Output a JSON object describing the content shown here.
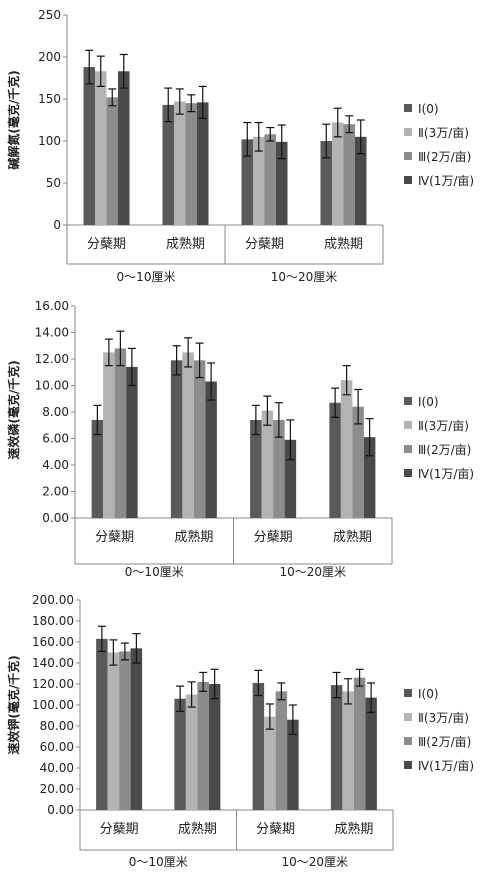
{
  "legend": [
    "Ⅰ(0)",
    "Ⅱ(3万/亩)",
    "Ⅲ(2万/亩)",
    "Ⅳ(1万/亩)"
  ],
  "colors": [
    "#5a5a5a",
    "#b3b3b3",
    "#8c8c8c",
    "#4a4a4a"
  ],
  "chart_data": [
    {
      "type": "bar",
      "ylabel": "碱解氮(毫克/千克)",
      "ylim": [
        0,
        250
      ],
      "yticks": [
        "0",
        "50",
        "100",
        "150",
        "200",
        "250"
      ],
      "ytick_values": [
        0,
        50,
        100,
        150,
        200,
        250
      ],
      "categories": [
        "分蘖期",
        "成熟期",
        "分蘖期",
        "成熟期"
      ],
      "groups": [
        "0～10厘米",
        "10～20厘米"
      ],
      "series": [
        {
          "name": "Ⅰ(0)",
          "values": [
            188,
            143,
            102,
            100
          ],
          "errors": [
            20,
            20,
            20,
            20
          ]
        },
        {
          "name": "Ⅱ(3万/亩)",
          "values": [
            183,
            147,
            105,
            122
          ],
          "errors": [
            18,
            15,
            17,
            17
          ]
        },
        {
          "name": "Ⅲ(2万/亩)",
          "values": [
            152,
            145,
            108,
            120
          ],
          "errors": [
            10,
            10,
            8,
            10
          ]
        },
        {
          "name": "Ⅳ(1万/亩)",
          "values": [
            183,
            146,
            99,
            105
          ],
          "errors": [
            20,
            19,
            20,
            20
          ]
        }
      ]
    },
    {
      "type": "bar",
      "ylabel": "速效磷(毫克/千克)",
      "ylim": [
        0,
        16
      ],
      "yticks": [
        "0.00",
        "2.00",
        "4.00",
        "6.00",
        "8.00",
        "10.00",
        "12.00",
        "14.00",
        "16.00"
      ],
      "ytick_values": [
        0,
        2,
        4,
        6,
        8,
        10,
        12,
        14,
        16
      ],
      "categories": [
        "分蘖期",
        "成熟期",
        "分蘖期",
        "成熟期"
      ],
      "groups": [
        "0～10厘米",
        "10～20厘米"
      ],
      "series": [
        {
          "name": "Ⅰ(0)",
          "values": [
            7.4,
            11.9,
            7.4,
            8.7
          ],
          "errors": [
            1.1,
            1.1,
            1.1,
            1.1
          ]
        },
        {
          "name": "Ⅱ(3万/亩)",
          "values": [
            12.5,
            12.5,
            8.1,
            10.4
          ],
          "errors": [
            1.0,
            1.1,
            1.1,
            1.1
          ]
        },
        {
          "name": "Ⅲ(2万/亩)",
          "values": [
            12.8,
            11.9,
            7.4,
            8.4
          ],
          "errors": [
            1.3,
            1.3,
            1.3,
            1.3
          ]
        },
        {
          "name": "Ⅳ(1万/亩)",
          "values": [
            11.4,
            10.3,
            5.9,
            6.1
          ],
          "errors": [
            1.4,
            1.4,
            1.5,
            1.4
          ]
        }
      ]
    },
    {
      "type": "bar",
      "ylabel": "速效钾(毫克/千克)",
      "ylim": [
        0,
        200
      ],
      "yticks": [
        "0.00",
        "20.00",
        "40.00",
        "60.00",
        "80.00",
        "100.00",
        "120.00",
        "140.00",
        "160.00",
        "180.00",
        "200.00"
      ],
      "ytick_values": [
        0,
        20,
        40,
        60,
        80,
        100,
        120,
        140,
        160,
        180,
        200
      ],
      "categories": [
        "分蘖期",
        "成熟期",
        "分蘖期",
        "成熟期"
      ],
      "groups": [
        "0～10厘米",
        "10～20厘米"
      ],
      "series": [
        {
          "name": "Ⅰ(0)",
          "values": [
            163,
            106,
            121,
            119
          ],
          "errors": [
            12,
            12,
            12,
            12
          ]
        },
        {
          "name": "Ⅱ(3万/亩)",
          "values": [
            150,
            110,
            89,
            113
          ],
          "errors": [
            12,
            12,
            12,
            12
          ]
        },
        {
          "name": "Ⅲ(2万/亩)",
          "values": [
            151,
            122,
            113,
            126
          ],
          "errors": [
            8,
            9,
            8,
            8
          ]
        },
        {
          "name": "Ⅳ(1万/亩)",
          "values": [
            154,
            120,
            86,
            107
          ],
          "errors": [
            14,
            14,
            14,
            14
          ]
        }
      ]
    }
  ]
}
